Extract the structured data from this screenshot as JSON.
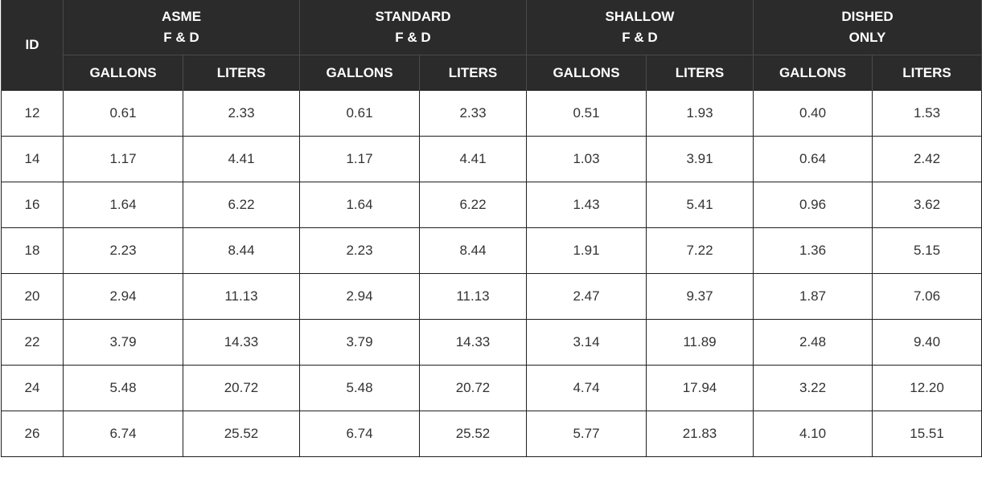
{
  "table": {
    "id_header": "ID",
    "groups": [
      {
        "line1": "ASME",
        "line2": "F & D"
      },
      {
        "line1": "STANDARD",
        "line2": "F & D"
      },
      {
        "line1": "SHALLOW",
        "line2": "F & D"
      },
      {
        "line1": "DISHED",
        "line2": "ONLY"
      }
    ],
    "subheaders": [
      "GALLONS",
      "LITERS",
      "GALLONS",
      "LITERS",
      "GALLONS",
      "LITERS",
      "GALLONS",
      "LITERS"
    ],
    "rows": [
      [
        "12",
        "0.61",
        "2.33",
        "0.61",
        "2.33",
        "0.51",
        "1.93",
        "0.40",
        "1.53"
      ],
      [
        "14",
        "1.17",
        "4.41",
        "1.17",
        "4.41",
        "1.03",
        "3.91",
        "0.64",
        "2.42"
      ],
      [
        "16",
        "1.64",
        "6.22",
        "1.64",
        "6.22",
        "1.43",
        "5.41",
        "0.96",
        "3.62"
      ],
      [
        "18",
        "2.23",
        "8.44",
        "2.23",
        "8.44",
        "1.91",
        "7.22",
        "1.36",
        "5.15"
      ],
      [
        "20",
        "2.94",
        "11.13",
        "2.94",
        "11.13",
        "2.47",
        "9.37",
        "1.87",
        "7.06"
      ],
      [
        "22",
        "3.79",
        "14.33",
        "3.79",
        "14.33",
        "3.14",
        "11.89",
        "2.48",
        "9.40"
      ],
      [
        "24",
        "5.48",
        "20.72",
        "5.48",
        "20.72",
        "4.74",
        "17.94",
        "3.22",
        "12.20"
      ],
      [
        "26",
        "6.74",
        "25.52",
        "6.74",
        "25.52",
        "5.77",
        "21.83",
        "4.10",
        "15.51"
      ]
    ]
  }
}
